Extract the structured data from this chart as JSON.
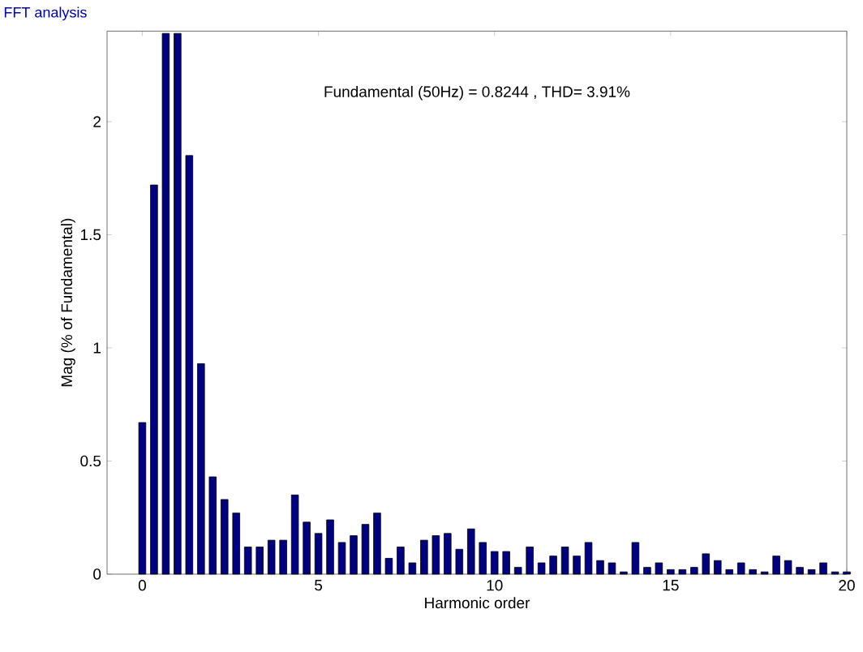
{
  "chart_data": {
    "type": "bar",
    "title": "FFT analysis",
    "subtitle": "Fundamental (50Hz) = 0.8244 , THD= 3.91%",
    "xlabel": "Harmonic order",
    "ylabel": "Mag (% of Fundamental)",
    "x": [
      0,
      0.3333,
      0.6667,
      1,
      1.3333,
      1.6667,
      2,
      2.3333,
      2.6667,
      3,
      3.3333,
      3.6667,
      4,
      4.3333,
      4.6667,
      5,
      5.3333,
      5.6667,
      6,
      6.3333,
      6.6667,
      7,
      7.3333,
      7.6667,
      8,
      8.3333,
      8.6667,
      9,
      9.3333,
      9.6667,
      10,
      10.3333,
      10.6667,
      11,
      11.3333,
      11.6667,
      12,
      12.3333,
      12.6667,
      13,
      13.3333,
      13.6667,
      14,
      14.3333,
      14.6667,
      15,
      15.3333,
      15.6667,
      16,
      16.3333,
      16.6667,
      17,
      17.3333,
      17.6667,
      18,
      18.3333,
      18.6667,
      19,
      19.3333,
      19.6667,
      20
    ],
    "values": [
      0.67,
      1.72,
      2.39,
      2.39,
      1.85,
      0.93,
      0.43,
      0.33,
      0.27,
      0.12,
      0.12,
      0.15,
      0.15,
      0.35,
      0.23,
      0.18,
      0.24,
      0.14,
      0.17,
      0.22,
      0.27,
      0.07,
      0.12,
      0.05,
      0.15,
      0.17,
      0.18,
      0.11,
      0.2,
      0.14,
      0.1,
      0.1,
      0.03,
      0.12,
      0.05,
      0.08,
      0.12,
      0.08,
      0.14,
      0.06,
      0.05,
      0.01,
      0.14,
      0.03,
      0.05,
      0.02,
      0.02,
      0.03,
      0.09,
      0.06,
      0.02,
      0.05,
      0.02,
      0.01,
      0.08,
      0.06,
      0.03,
      0.02,
      0.05,
      0.01,
      0.01
    ],
    "color": "#000080",
    "xlim": [
      -1,
      20
    ],
    "ylim": [
      0,
      2.4
    ],
    "xticks": [
      0,
      5,
      10,
      15,
      20
    ],
    "yticks": [
      0,
      0.5,
      1,
      1.5,
      2
    ]
  }
}
